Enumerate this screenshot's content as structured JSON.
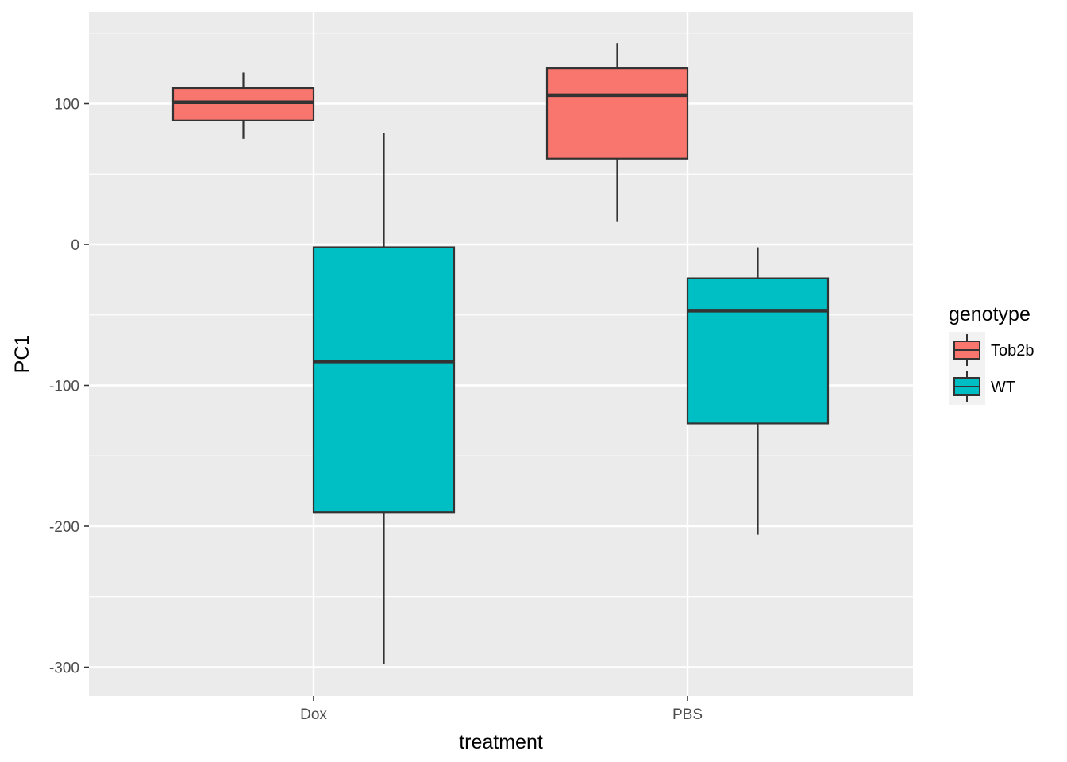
{
  "chart_data": {
    "type": "boxplot",
    "xlabel": "treatment",
    "ylabel": "PC1",
    "categories": [
      "Dox",
      "PBS"
    ],
    "ylim": [
      -320,
      163
    ],
    "yticks": [
      100,
      0,
      -100,
      -200,
      -300
    ],
    "grid": true,
    "legend": {
      "title": "genotype",
      "position": "right",
      "entries": [
        "Tob2b",
        "WT"
      ]
    },
    "series": [
      {
        "name": "Tob2b",
        "color": "#F8766D",
        "boxes": [
          {
            "category": "Dox",
            "min": 75,
            "q1": 88,
            "median": 101,
            "q3": 111,
            "max": 122
          },
          {
            "category": "PBS",
            "min": 16,
            "q1": 61,
            "median": 106,
            "q3": 125,
            "max": 143
          }
        ]
      },
      {
        "name": "WT",
        "color": "#00BFC4",
        "boxes": [
          {
            "category": "Dox",
            "min": -298,
            "q1": -190,
            "median": -83,
            "q3": -2,
            "max": 79
          },
          {
            "category": "PBS",
            "min": -206,
            "q1": -127,
            "median": -47,
            "q3": -24,
            "max": -2
          }
        ]
      }
    ]
  }
}
